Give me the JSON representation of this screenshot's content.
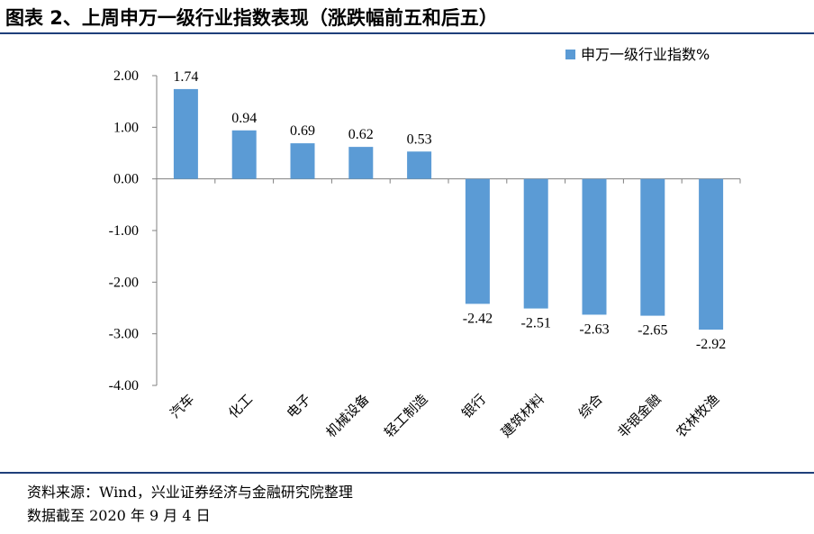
{
  "header": {
    "title": "图表 2、上周申万一级行业指数表现（涨跌幅前五和后五）"
  },
  "footer": {
    "source": "资料来源：Wind，兴业证券经济与金融研究院整理",
    "date": "数据截至 2020 年 9 月 4 日"
  },
  "colors": {
    "bar": "#5b9bd5",
    "rule": "#1f3f7a"
  },
  "chart_data": {
    "type": "bar",
    "categories": [
      "汽车",
      "化工",
      "电子",
      "机械设备",
      "轻工制造",
      "银行",
      "建筑材料",
      "综合",
      "非银金融",
      "农林牧渔"
    ],
    "series": [
      {
        "name": "申万一级行业指数%",
        "values": [
          1.74,
          0.94,
          0.69,
          0.62,
          0.53,
          -2.42,
          -2.51,
          -2.63,
          -2.65,
          -2.92
        ]
      }
    ],
    "value_labels": [
      "1.74",
      "0.94",
      "0.69",
      "0.62",
      "0.53",
      "-2.42",
      "-2.51",
      "-2.63",
      "-2.65",
      "-2.92"
    ],
    "yticks": [
      "2.00",
      "1.00",
      "0.00",
      "-1.00",
      "-2.00",
      "-3.00",
      "-4.00"
    ],
    "ylim": [
      -4,
      2
    ],
    "legend_position": "top-right",
    "grid": false
  }
}
